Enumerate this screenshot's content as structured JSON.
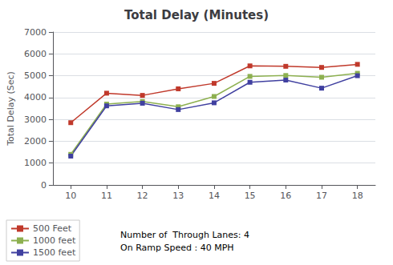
{
  "chart_data": {
    "type": "line",
    "title": "Total Delay (Minutes)",
    "ylabel": "Total Delay (Sec)",
    "x": [
      10,
      11,
      12,
      13,
      14,
      15,
      16,
      17,
      18
    ],
    "series": [
      {
        "name": "500 Feet",
        "color": "#c0392b",
        "marker": "square",
        "line_style": "solid",
        "values": [
          2850,
          4200,
          4100,
          4400,
          4650,
          5450,
          5430,
          5380,
          5520
        ]
      },
      {
        "name": "1000 feet",
        "color": "#8db050",
        "marker": "square",
        "line_style": "solid",
        "values": [
          1400,
          3700,
          3820,
          3580,
          4050,
          4970,
          5010,
          4930,
          5110
        ]
      },
      {
        "name": "1500 feet",
        "color": "#4040a0",
        "marker": "square",
        "line_style": "solid",
        "values": [
          1320,
          3620,
          3740,
          3450,
          3760,
          4700,
          4800,
          4430,
          5000
        ]
      }
    ],
    "xlim": [
      9.5,
      18.5
    ],
    "xticks": [
      10,
      11,
      12,
      13,
      14,
      15,
      16,
      17,
      18
    ],
    "ylim": [
      0,
      7000
    ],
    "yticks": [
      0,
      1000,
      2000,
      3000,
      4000,
      5000,
      6000,
      7000
    ],
    "grid": true,
    "legend": "lower left",
    "annotation": "Number of  Through Lanes: 4\nOn Ramp Speed : 40 MPH"
  }
}
